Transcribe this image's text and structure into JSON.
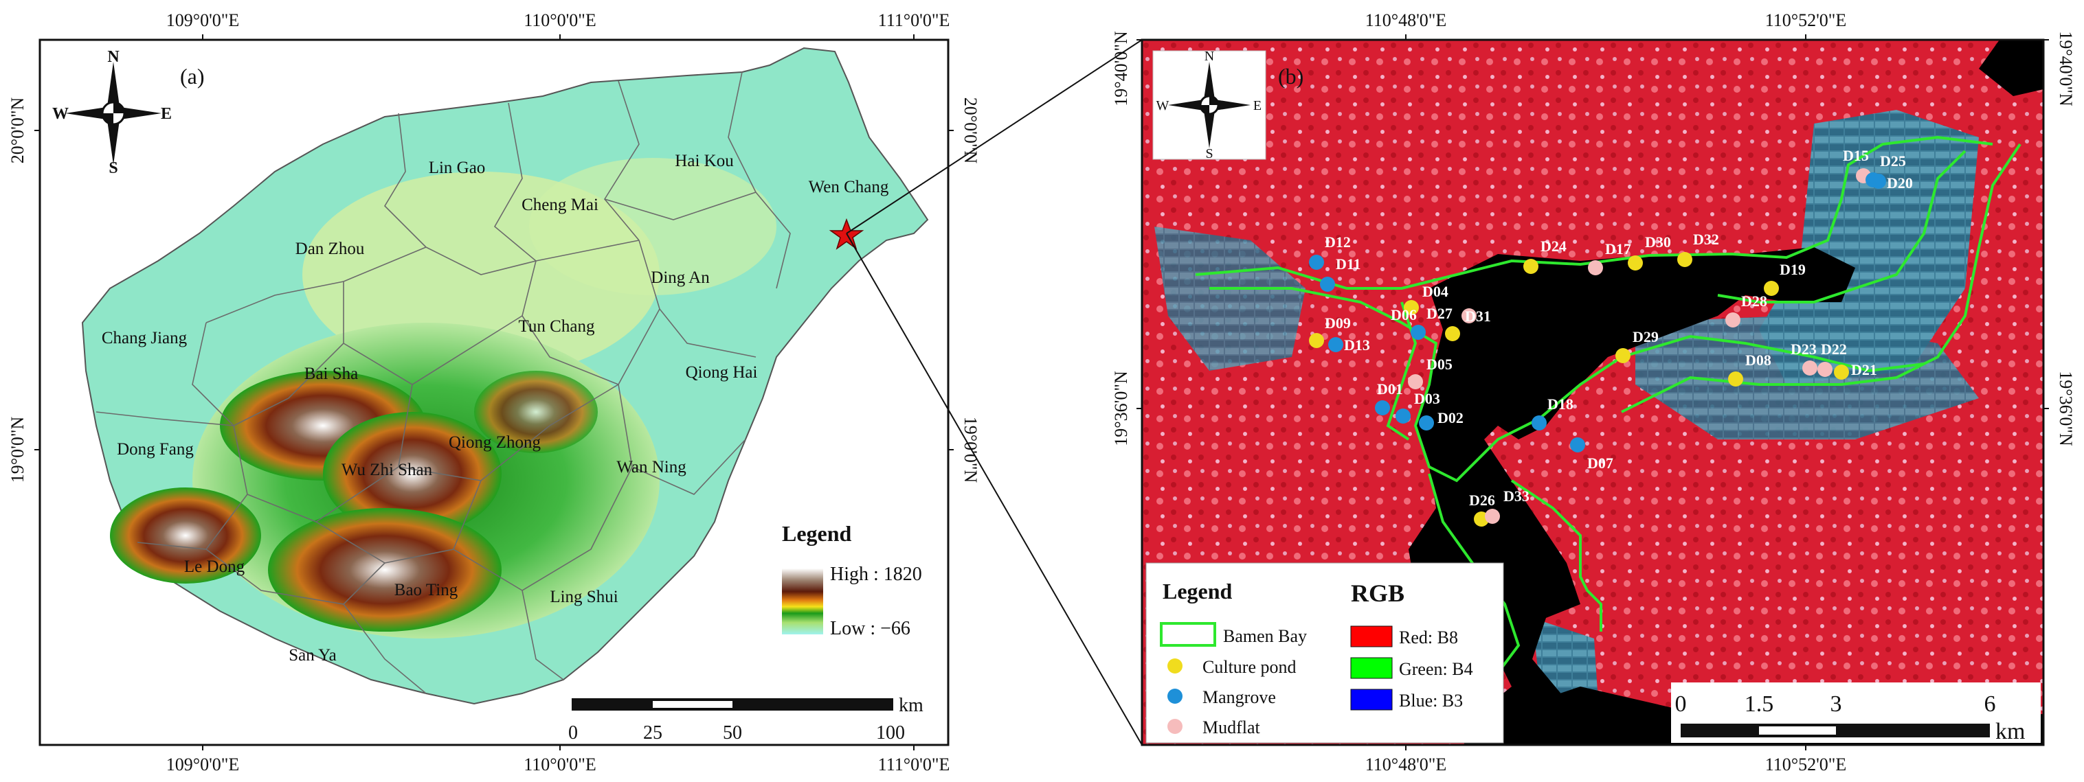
{
  "panel_a": {
    "label": "(a)",
    "compass": {
      "n": "N",
      "s": "S",
      "e": "E",
      "w": "W"
    },
    "top_ticks": [
      "109°0'0\"E",
      "110°0'0\"E",
      "111°0'0\"E"
    ],
    "bottom_ticks": [
      "109°0'0\"E",
      "110°0'0\"E",
      "111°0'0\"E"
    ],
    "left_ticks": [
      "20°0'0\"N",
      "19°0'0\"N"
    ],
    "right_ticks": [
      "20°0'0\"N",
      "19°0'0\"N"
    ],
    "regions": [
      {
        "name": "Lin Gao"
      },
      {
        "name": "Cheng Mai"
      },
      {
        "name": "Hai Kou"
      },
      {
        "name": "Wen Chang"
      },
      {
        "name": "Dan Zhou"
      },
      {
        "name": "Ding An"
      },
      {
        "name": "Tun Chang"
      },
      {
        "name": "Chang Jiang"
      },
      {
        "name": "Bai Sha"
      },
      {
        "name": "Qiong Hai"
      },
      {
        "name": "Qiong Zhong"
      },
      {
        "name": "Dong Fang"
      },
      {
        "name": "Wu Zhi Shan"
      },
      {
        "name": "Wan Ning"
      },
      {
        "name": "Le Dong"
      },
      {
        "name": "Bao Ting"
      },
      {
        "name": "Ling Shui"
      },
      {
        "name": "San Ya"
      }
    ],
    "legend": {
      "title": "Legend",
      "high": "High : 1820",
      "low": "Low : −66"
    },
    "scalebar": {
      "unit": "km",
      "ticks": [
        "0",
        "25",
        "50",
        "100"
      ]
    }
  },
  "panel_b": {
    "label": "(b)",
    "compass": {
      "n": "N",
      "s": "S",
      "e": "E",
      "w": "W"
    },
    "top_ticks": [
      "110°48'0\"E",
      "110°52'0\"E"
    ],
    "bottom_ticks": [
      "110°48'0\"E",
      "110°52'0\"E"
    ],
    "left_ticks": [
      "19°40'0\"N",
      "19°36'0\"N"
    ],
    "right_ticks": [
      "19°40'0\"N",
      "19°36'0\"N"
    ],
    "sites": [
      {
        "id": "D12",
        "type": "mangrove"
      },
      {
        "id": "D11",
        "type": "mangrove"
      },
      {
        "id": "D24",
        "type": "culture"
      },
      {
        "id": "D17",
        "type": "mudflat"
      },
      {
        "id": "D30",
        "type": "culture"
      },
      {
        "id": "D32",
        "type": "culture"
      },
      {
        "id": "D15",
        "type": "mudflat"
      },
      {
        "id": "D25",
        "type": "mangrove"
      },
      {
        "id": "D20",
        "type": "mangrove"
      },
      {
        "id": "D19",
        "type": "culture"
      },
      {
        "id": "D28",
        "type": "mudflat"
      },
      {
        "id": "D04",
        "type": "culture"
      },
      {
        "id": "D06",
        "type": "mangrove"
      },
      {
        "id": "D27",
        "type": "culture"
      },
      {
        "id": "D31",
        "type": "mudflat"
      },
      {
        "id": "D09",
        "type": "culture"
      },
      {
        "id": "D13",
        "type": "mangrove"
      },
      {
        "id": "D05",
        "type": "mudflat"
      },
      {
        "id": "D29",
        "type": "culture"
      },
      {
        "id": "D08",
        "type": "culture"
      },
      {
        "id": "D23",
        "type": "mudflat"
      },
      {
        "id": "D22",
        "type": "mudflat"
      },
      {
        "id": "D21",
        "type": "culture"
      },
      {
        "id": "D01",
        "type": "mangrove"
      },
      {
        "id": "D03",
        "type": "mangrove"
      },
      {
        "id": "D02",
        "type": "mangrove"
      },
      {
        "id": "D18",
        "type": "mangrove"
      },
      {
        "id": "D07",
        "type": "mangrove"
      },
      {
        "id": "D26",
        "type": "culture"
      },
      {
        "id": "D33",
        "type": "mudflat"
      }
    ],
    "legend": {
      "title": "Legend",
      "bamen": "Bamen Bay",
      "culture": "Culture pond",
      "mangrove": "Mangrove",
      "mudflat": "Mudflat",
      "rgb_title": "RGB",
      "red": "Red:   B8",
      "green": "Green: B4",
      "blue": "Blue:   B3"
    },
    "scalebar": {
      "unit": "km",
      "ticks": [
        "0",
        "1.5",
        "3",
        "6"
      ]
    }
  },
  "colors": {
    "frame": "#111111",
    "culture": "#f0dc1e",
    "mangrove": "#1e90d8",
    "mudflat": "#f6bcbc",
    "bay_outline": "#2ee82e",
    "red_band": "#ff0000",
    "green_band": "#00ff00",
    "blue_band": "#0000ff",
    "star": "#e01010"
  }
}
